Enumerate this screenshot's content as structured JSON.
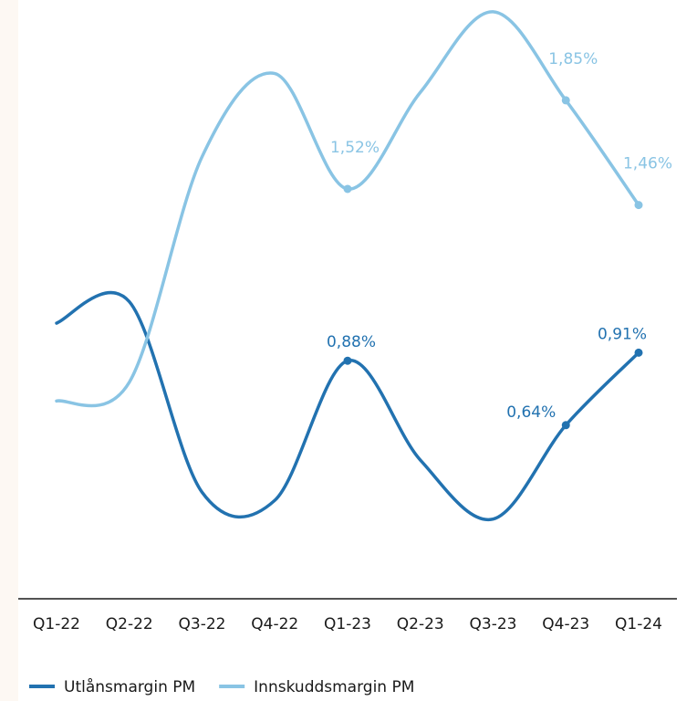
{
  "chart_data": {
    "type": "line",
    "categories": [
      "Q1-22",
      "Q2-22",
      "Q3-22",
      "Q4-22",
      "Q1-23",
      "Q2-23",
      "Q3-23",
      "Q4-23",
      "Q1-24"
    ],
    "series": [
      {
        "name": "Utlånsmargin PM",
        "color": "#2272b0",
        "values": [
          1.02,
          1.1,
          0.39,
          0.36,
          0.88,
          0.51,
          0.29,
          0.64,
          0.91
        ],
        "value_labels": [
          null,
          null,
          null,
          null,
          "0,88%",
          null,
          null,
          "0,64%",
          "0,91%"
        ]
      },
      {
        "name": "Innskuddsmargin PM",
        "color": "#89c4e4",
        "values": [
          0.73,
          0.8,
          1.64,
          1.95,
          1.52,
          1.88,
          2.18,
          1.85,
          1.46
        ],
        "value_labels": [
          null,
          null,
          null,
          null,
          "1,52%",
          null,
          null,
          "1,85%",
          "1,46%"
        ]
      }
    ],
    "ylim": [
      0,
      2.2
    ]
  }
}
